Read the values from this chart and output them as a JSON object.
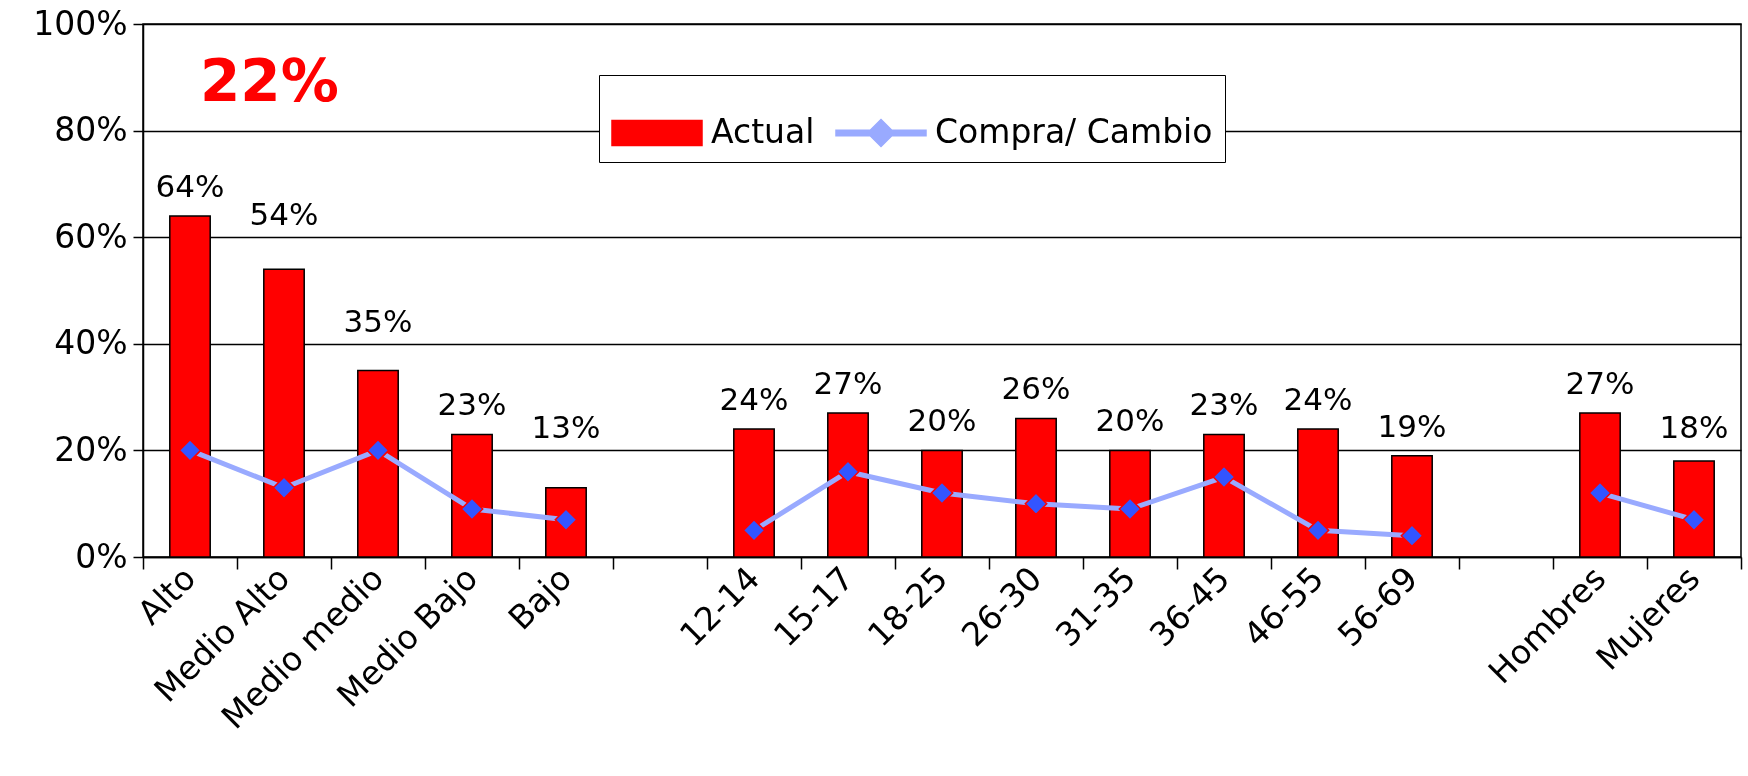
{
  "chart_data": {
    "type": "bar",
    "annotations": [
      "22%"
    ],
    "categories": [
      "Alto",
      "Medio Alto",
      "Medio medio",
      "Medio Bajo",
      "Bajo",
      null,
      "12-14",
      "15-17",
      "18-25",
      "26-30",
      "31-35",
      "36-45",
      "46-55",
      "56-69",
      null,
      "Hombres",
      "Mujeres"
    ],
    "series": [
      {
        "name": "Actual",
        "color": "#ff0000",
        "values": [
          64,
          54,
          35,
          23,
          13,
          null,
          24,
          27,
          20,
          26,
          20,
          23,
          24,
          19,
          null,
          27,
          18
        ],
        "value_labels": [
          "64%",
          "54%",
          "35%",
          "23%",
          "13%",
          null,
          "24%",
          "27%",
          "20%",
          "26%",
          "20%",
          "23%",
          "24%",
          "19%",
          null,
          "27%",
          "18%"
        ]
      },
      {
        "name": "Compra/ Cambio",
        "type": "line",
        "color": "#99aaff",
        "values": [
          20,
          13,
          20,
          9,
          7,
          null,
          5,
          16,
          12,
          10,
          9,
          15,
          5,
          4,
          null,
          12,
          7
        ]
      }
    ],
    "ylim": [
      0,
      100
    ],
    "yticks": [
      {
        "value": 0,
        "label": "0%"
      },
      {
        "value": 20,
        "label": "20%"
      },
      {
        "value": 40,
        "label": "40%"
      },
      {
        "value": 60,
        "label": "60%"
      },
      {
        "value": 80,
        "label": "80%"
      },
      {
        "value": 100,
        "label": "100%"
      }
    ],
    "grid": "y",
    "legend": "top",
    "marker": "diamond",
    "line_style": "solid"
  }
}
